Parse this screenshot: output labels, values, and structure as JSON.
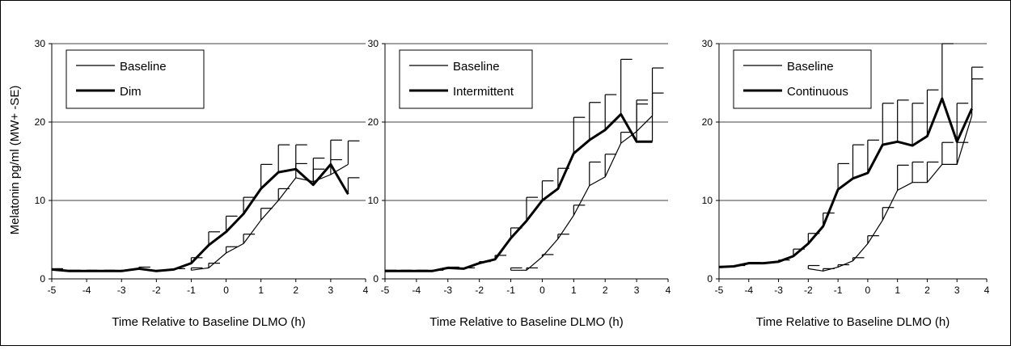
{
  "figure": {
    "ylabel": "Melatonin pg/ml (MW+ -SE)",
    "xlabel": "Time Relative to Baseline DLMO (h)"
  },
  "chart_data": [
    {
      "type": "line",
      "xlabel": "Time Relative to Baseline DLMO (h)",
      "ylabel": "Melatonin pg/ml (MW+ -SE)",
      "xlim": [
        -5,
        4
      ],
      "ylim": [
        0,
        30
      ],
      "xticks": [
        "-5",
        "-4",
        "-3",
        "-2",
        "-1",
        "0",
        "1",
        "2",
        "3",
        "4"
      ],
      "yticks": [
        "0",
        "10",
        "20",
        "30"
      ],
      "grid": "horizontal",
      "legend_position": "top-left",
      "series": [
        {
          "name": "Baseline",
          "style": "thin",
          "x": [
            -1,
            -0.5,
            0,
            0.5,
            1,
            1.5,
            2,
            2.5,
            3,
            3.5
          ],
          "y": [
            1.1,
            1.4,
            3.3,
            4.5,
            7.5,
            10,
            12.9,
            12.4,
            13.3,
            14.6
          ],
          "err": [
            0.3,
            0.6,
            0.8,
            1.2,
            1.5,
            1.5,
            1.8,
            1.6,
            1.9,
            3.0
          ]
        },
        {
          "name": "Dim",
          "style": "thick",
          "x": [
            -5,
            -4.5,
            -4,
            -3.5,
            -3,
            -2.5,
            -2,
            -1.5,
            -1,
            -0.5,
            0,
            0.5,
            1,
            1.5,
            2,
            2.5,
            3,
            3.5
          ],
          "y": [
            1.2,
            1.0,
            1.0,
            1.0,
            1.0,
            1.3,
            1.0,
            1.2,
            2.0,
            4.3,
            6.0,
            8.3,
            11.5,
            13.6,
            14.0,
            12.0,
            14.6,
            10.8
          ],
          "err": [
            0.1,
            0.1,
            0.1,
            0.1,
            0.1,
            0.2,
            0.1,
            0.1,
            0.7,
            1.7,
            2.0,
            2.1,
            3.1,
            3.5,
            3.1,
            3.4,
            3.1,
            2.1
          ]
        }
      ]
    },
    {
      "type": "line",
      "xlabel": "Time Relative to Baseline DLMO (h)",
      "ylabel": "",
      "xlim": [
        -5,
        4
      ],
      "ylim": [
        0,
        30
      ],
      "xticks": [
        "-5",
        "-4",
        "-3",
        "-2",
        "-1",
        "0",
        "1",
        "2",
        "3",
        "4"
      ],
      "yticks": [
        "0",
        "10",
        "20",
        "30"
      ],
      "grid": "horizontal",
      "legend_position": "top-left",
      "series": [
        {
          "name": "Baseline",
          "style": "thin",
          "x": [
            -1,
            -0.5,
            0,
            0.5,
            1,
            1.5,
            2,
            2.5,
            3,
            3.5
          ],
          "y": [
            1.1,
            1.1,
            2.8,
            5.1,
            8.1,
            11.9,
            13.0,
            17.3,
            18.8,
            20.8
          ],
          "err": [
            0.3,
            0.3,
            0.3,
            0.6,
            1.3,
            3.0,
            2.9,
            1.4,
            4.0,
            2.9
          ]
        },
        {
          "name": "Intermittent",
          "style": "thick",
          "x": [
            -5,
            -4.5,
            -4,
            -3.5,
            -3,
            -2.5,
            -2,
            -1.5,
            -1,
            -0.5,
            0,
            0.5,
            1,
            1.5,
            2,
            2.5,
            3,
            3.5
          ],
          "y": [
            1.0,
            1.0,
            1.0,
            1.0,
            1.4,
            1.3,
            2.0,
            2.5,
            5.2,
            7.4,
            10.0,
            11.5,
            16.0,
            17.7,
            19.0,
            21.0,
            17.5,
            17.5
          ],
          "err": [
            0.1,
            0.1,
            0.1,
            0.1,
            0.1,
            0.1,
            0.2,
            0.5,
            1.3,
            3.0,
            2.5,
            2.6,
            4.6,
            4.8,
            4.5,
            7.0,
            4.8,
            9.4
          ]
        }
      ]
    },
    {
      "type": "line",
      "xlabel": "Time Relative to Baseline DLMO (h)",
      "ylabel": "",
      "xlim": [
        -5,
        4
      ],
      "ylim": [
        0,
        30
      ],
      "xticks": [
        "-5",
        "-4",
        "-3",
        "-2",
        "-1",
        "0",
        "1",
        "2",
        "3",
        "4"
      ],
      "yticks": [
        "0",
        "10",
        "20",
        "30"
      ],
      "grid": "horizontal",
      "legend_position": "top-left",
      "series": [
        {
          "name": "Baseline",
          "style": "thin",
          "x": [
            -2,
            -1.5,
            -1,
            -0.5,
            0,
            0.5,
            1,
            1.5,
            2,
            2.5,
            3,
            3.5
          ],
          "y": [
            1.3,
            1.0,
            1.5,
            2.3,
            4.5,
            7.5,
            11.3,
            12.3,
            12.3,
            14.6,
            14.6,
            20.8
          ],
          "err": [
            0.4,
            0.3,
            0.3,
            0.4,
            1.0,
            1.6,
            3.2,
            2.6,
            2.6,
            2.8,
            2.8,
            4.7
          ]
        },
        {
          "name": "Continuous",
          "style": "thick",
          "x": [
            -5,
            -4.5,
            -4,
            -3.5,
            -3,
            -2.5,
            -2,
            -1.5,
            -1,
            -0.5,
            0,
            0.5,
            1,
            1.5,
            2,
            2.5,
            3,
            3.5
          ],
          "y": [
            1.5,
            1.6,
            2.0,
            2.0,
            2.2,
            2.9,
            4.5,
            6.7,
            11.4,
            12.8,
            13.5,
            17.1,
            17.5,
            17.0,
            18.2,
            23.0,
            17.5,
            21.7
          ],
          "err": [
            0.1,
            0.1,
            0.1,
            0.1,
            0.2,
            0.9,
            1.3,
            1.7,
            3.3,
            4.3,
            4.2,
            5.3,
            5.3,
            5.4,
            5.9,
            7.0,
            4.9,
            5.3
          ]
        }
      ]
    }
  ]
}
